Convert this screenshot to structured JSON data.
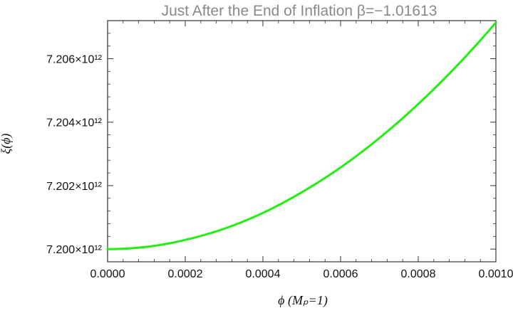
{
  "chart_data": {
    "type": "line",
    "title": "Just After the End of Inflation β=−1.01613",
    "xlabel": "ϕ (Mₚ=1)",
    "ylabel": "ξ(ϕ)",
    "xlim": [
      0.0,
      0.001
    ],
    "ylim": [
      7199600000000.0,
      7207200000000.0
    ],
    "x_ticks": [
      0.0,
      0.0002,
      0.0004,
      0.0006,
      0.0008,
      0.001
    ],
    "x_tick_labels": [
      "0.0000",
      "0.0002",
      "0.0004",
      "0.0006",
      "0.0008",
      "0.0010"
    ],
    "y_ticks": [
      7200000000000.0,
      7202000000000.0,
      7204000000000.0,
      7206000000000.0
    ],
    "y_tick_labels": [
      "7.200×10¹²",
      "7.202×10¹²",
      "7.204×10¹²",
      "7.206×10¹²"
    ],
    "grid": false,
    "series": [
      {
        "color": "#22ee11",
        "x": [
          0.0,
          0.0001,
          0.0002,
          0.0003,
          0.0004,
          0.0005,
          0.0006,
          0.0007,
          0.0008,
          0.0009,
          0.001
        ],
        "y": [
          7200000000000.0,
          7200070000000.0,
          7200290000000.0,
          7200640000000.0,
          7201140000000.0,
          7201790000000.0,
          7202570000000.0,
          7203500000000.0,
          7204570000000.0,
          7205780000000.0,
          7207140000000.0
        ]
      }
    ]
  }
}
